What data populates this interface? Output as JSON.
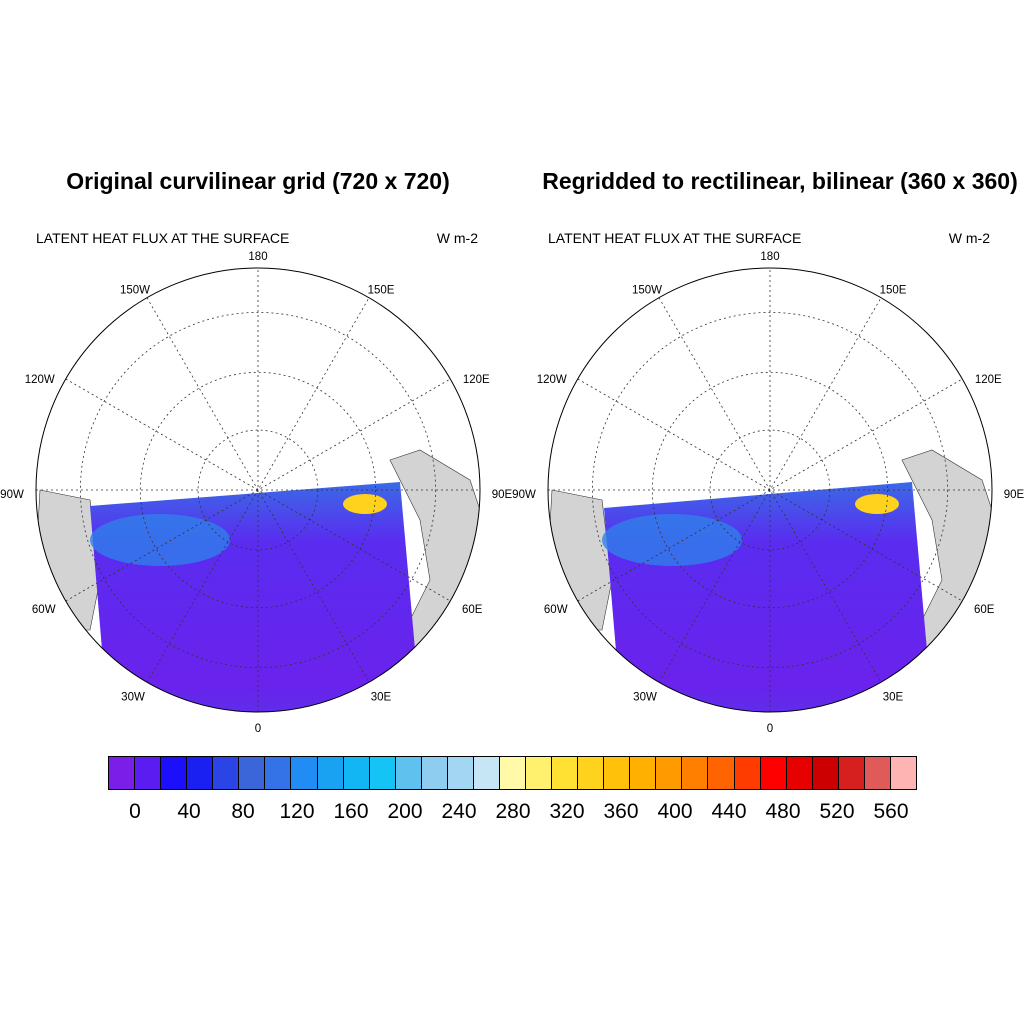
{
  "panels": [
    {
      "title": "Original curvilinear grid (720 x 720)",
      "variable": "LATENT HEAT FLUX AT THE SURFACE",
      "units": "W m-2"
    },
    {
      "title": "Regridded to rectilinear, bilinear (360 x 360)",
      "variable": "LATENT HEAT FLUX AT THE SURFACE",
      "units": "W m-2"
    }
  ],
  "map": {
    "projection": "north-polar-stereographic",
    "longitude_labels": [
      "180",
      "150E",
      "120E",
      "90E",
      "60E",
      "30E",
      "0",
      "30W",
      "60W",
      "90W",
      "120W",
      "150W"
    ],
    "land_color": "#d3d3d3",
    "ocean_color": "#ffffff"
  },
  "colorbar": {
    "colors": [
      "#7a1ee8",
      "#5a1cf0",
      "#1c0ffa",
      "#1a20f2",
      "#2a44e6",
      "#3b66da",
      "#3472e8",
      "#228cf5",
      "#1aa2f2",
      "#12b6f2",
      "#16c3f5",
      "#5ec1ee",
      "#8ecdf0",
      "#a2d6f2",
      "#c6e6f6",
      "#fff9a8",
      "#fff06e",
      "#ffe133",
      "#ffd21e",
      "#ffc10a",
      "#ffb000",
      "#ff9a00",
      "#ff8000",
      "#ff6400",
      "#ff3c00",
      "#ff0000",
      "#e60000",
      "#cc0000",
      "#d62020",
      "#e05a5a",
      "#ffb4b4"
    ],
    "labels": [
      "0",
      "40",
      "80",
      "120",
      "160",
      "200",
      "240",
      "280",
      "320",
      "360",
      "400",
      "440",
      "480",
      "520",
      "560"
    ]
  }
}
